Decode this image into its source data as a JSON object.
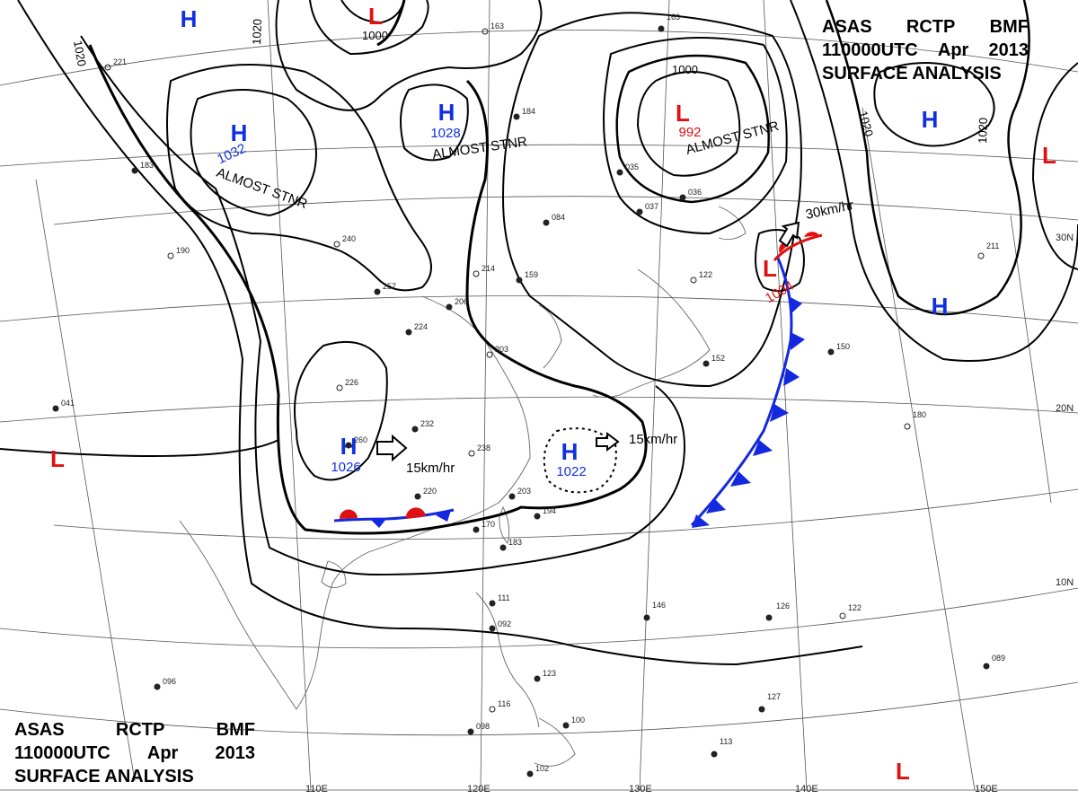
{
  "header": {
    "agency": [
      "ASAS",
      "RCTP",
      "BMF"
    ],
    "time": [
      "110000UTC",
      "Apr",
      "2013"
    ],
    "product": "SURFACE ANALYSIS"
  },
  "colors": {
    "high": "#1030e0",
    "low": "#e01010",
    "cold_front": "#1428e0",
    "warm_front": "#e01010",
    "isobar": "#000000",
    "coast": "#555555",
    "grid": "#444444"
  },
  "pressure_centers": [
    {
      "type": "H",
      "letter": "H",
      "value": ""
    },
    {
      "type": "H",
      "letter": "H",
      "value": "1032"
    },
    {
      "type": "H",
      "letter": "H",
      "value": "1028"
    },
    {
      "type": "H",
      "letter": "H",
      "value": "1026"
    },
    {
      "type": "H",
      "letter": "H",
      "value": "1022"
    },
    {
      "type": "H",
      "letter": "H",
      "value": ""
    },
    {
      "type": "H",
      "letter": "H",
      "value": ""
    },
    {
      "type": "L",
      "letter": "L",
      "value": ""
    },
    {
      "type": "L",
      "letter": "L",
      "value": "992"
    },
    {
      "type": "L",
      "letter": "L",
      "value": "1004"
    },
    {
      "type": "L",
      "letter": "L",
      "value": ""
    },
    {
      "type": "L",
      "letter": "L",
      "value": ""
    },
    {
      "type": "L",
      "letter": "L",
      "value": ""
    }
  ],
  "isobar_labels": [
    "1020",
    "1020",
    "1000",
    "1000",
    "1020",
    "1020"
  ],
  "annotations": [
    "ALMOST STNR",
    "ALMOST STNR",
    "ALMOST STNR"
  ],
  "motion": [
    "15km/hr",
    "15km/hr",
    "30km/hr"
  ],
  "longitude_labels": [
    "110E",
    "120E",
    "130E",
    "140E",
    "150E"
  ],
  "latitude_labels": [
    "30N",
    "20N",
    "10N"
  ],
  "stations": [
    "221",
    "183",
    "190",
    "240",
    "257",
    "224",
    "226",
    "232",
    "238",
    "220",
    "203",
    "170",
    "183",
    "194",
    "163",
    "214",
    "159",
    "206",
    "203",
    "084",
    "035",
    "037",
    "036",
    "122",
    "152",
    "150",
    "180",
    "211",
    "146",
    "126",
    "122",
    "111",
    "092",
    "123",
    "116",
    "100",
    "098",
    "102",
    "089",
    "113",
    "127",
    "096",
    "041",
    "163",
    "184",
    "260"
  ]
}
